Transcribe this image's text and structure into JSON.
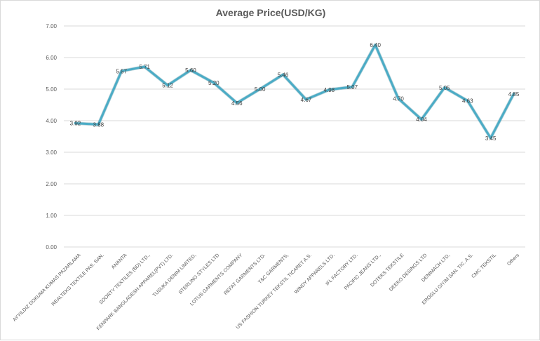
{
  "chart_data": {
    "type": "line",
    "title": "Average Price(USD/KG)",
    "xlabel": "",
    "ylabel": "",
    "ylim": [
      0,
      7
    ],
    "yticks": [
      "0.00",
      "1.00",
      "2.00",
      "3.00",
      "4.00",
      "5.00",
      "6.00",
      "7.00"
    ],
    "grid": true,
    "legend": "none",
    "line_color": "#4bacc6",
    "categories": [
      "AYYILDIZ DOKUMA KUMAS PAZARLAMA",
      "REALTEKS TEXTILE PAS. SAN.",
      "ANANTA",
      "SOORTY TEXTILES (BD) LTD.,",
      "KENPARK BANGLADESH APPAREL(PVT) LTD.",
      "TUSUKA DENIM LIMITED,",
      "STERLING STYLES LTD",
      "LOTUS GARMENTS COMPANY",
      "REFAT GARMENTS LTD.",
      "T&C GARMENTS,",
      "US FASHION TURKEY TEKSTIL TICARET A.S.",
      "WINDY APPARELS LTD.",
      "IFL FACTORY LTD.",
      "PACIFIC JEANS LTD.,",
      "DOTEKS TEKSTILE",
      "DEEKO DESINGS LTD",
      "DENIMACH LTD,",
      "EROGLU GIYIM SAN. TIC. A.S.",
      "CMC TEKSTIL",
      "Others"
    ],
    "values": [
      3.92,
      3.88,
      5.57,
      5.71,
      5.12,
      5.6,
      5.2,
      4.56,
      5.0,
      5.46,
      4.67,
      4.98,
      5.07,
      6.4,
      4.7,
      4.04,
      5.05,
      4.63,
      3.45,
      4.85
    ],
    "labels": [
      "3.92",
      "3.88",
      "5.57",
      "5.71",
      "5.12",
      "5.60",
      "5.20",
      "4.56",
      "5.00",
      "5.46",
      "4.67",
      "4.98",
      "5.07",
      "6.40",
      "4.70",
      "4.04",
      "5.05",
      "4.63",
      "3.45",
      "4.85"
    ]
  }
}
